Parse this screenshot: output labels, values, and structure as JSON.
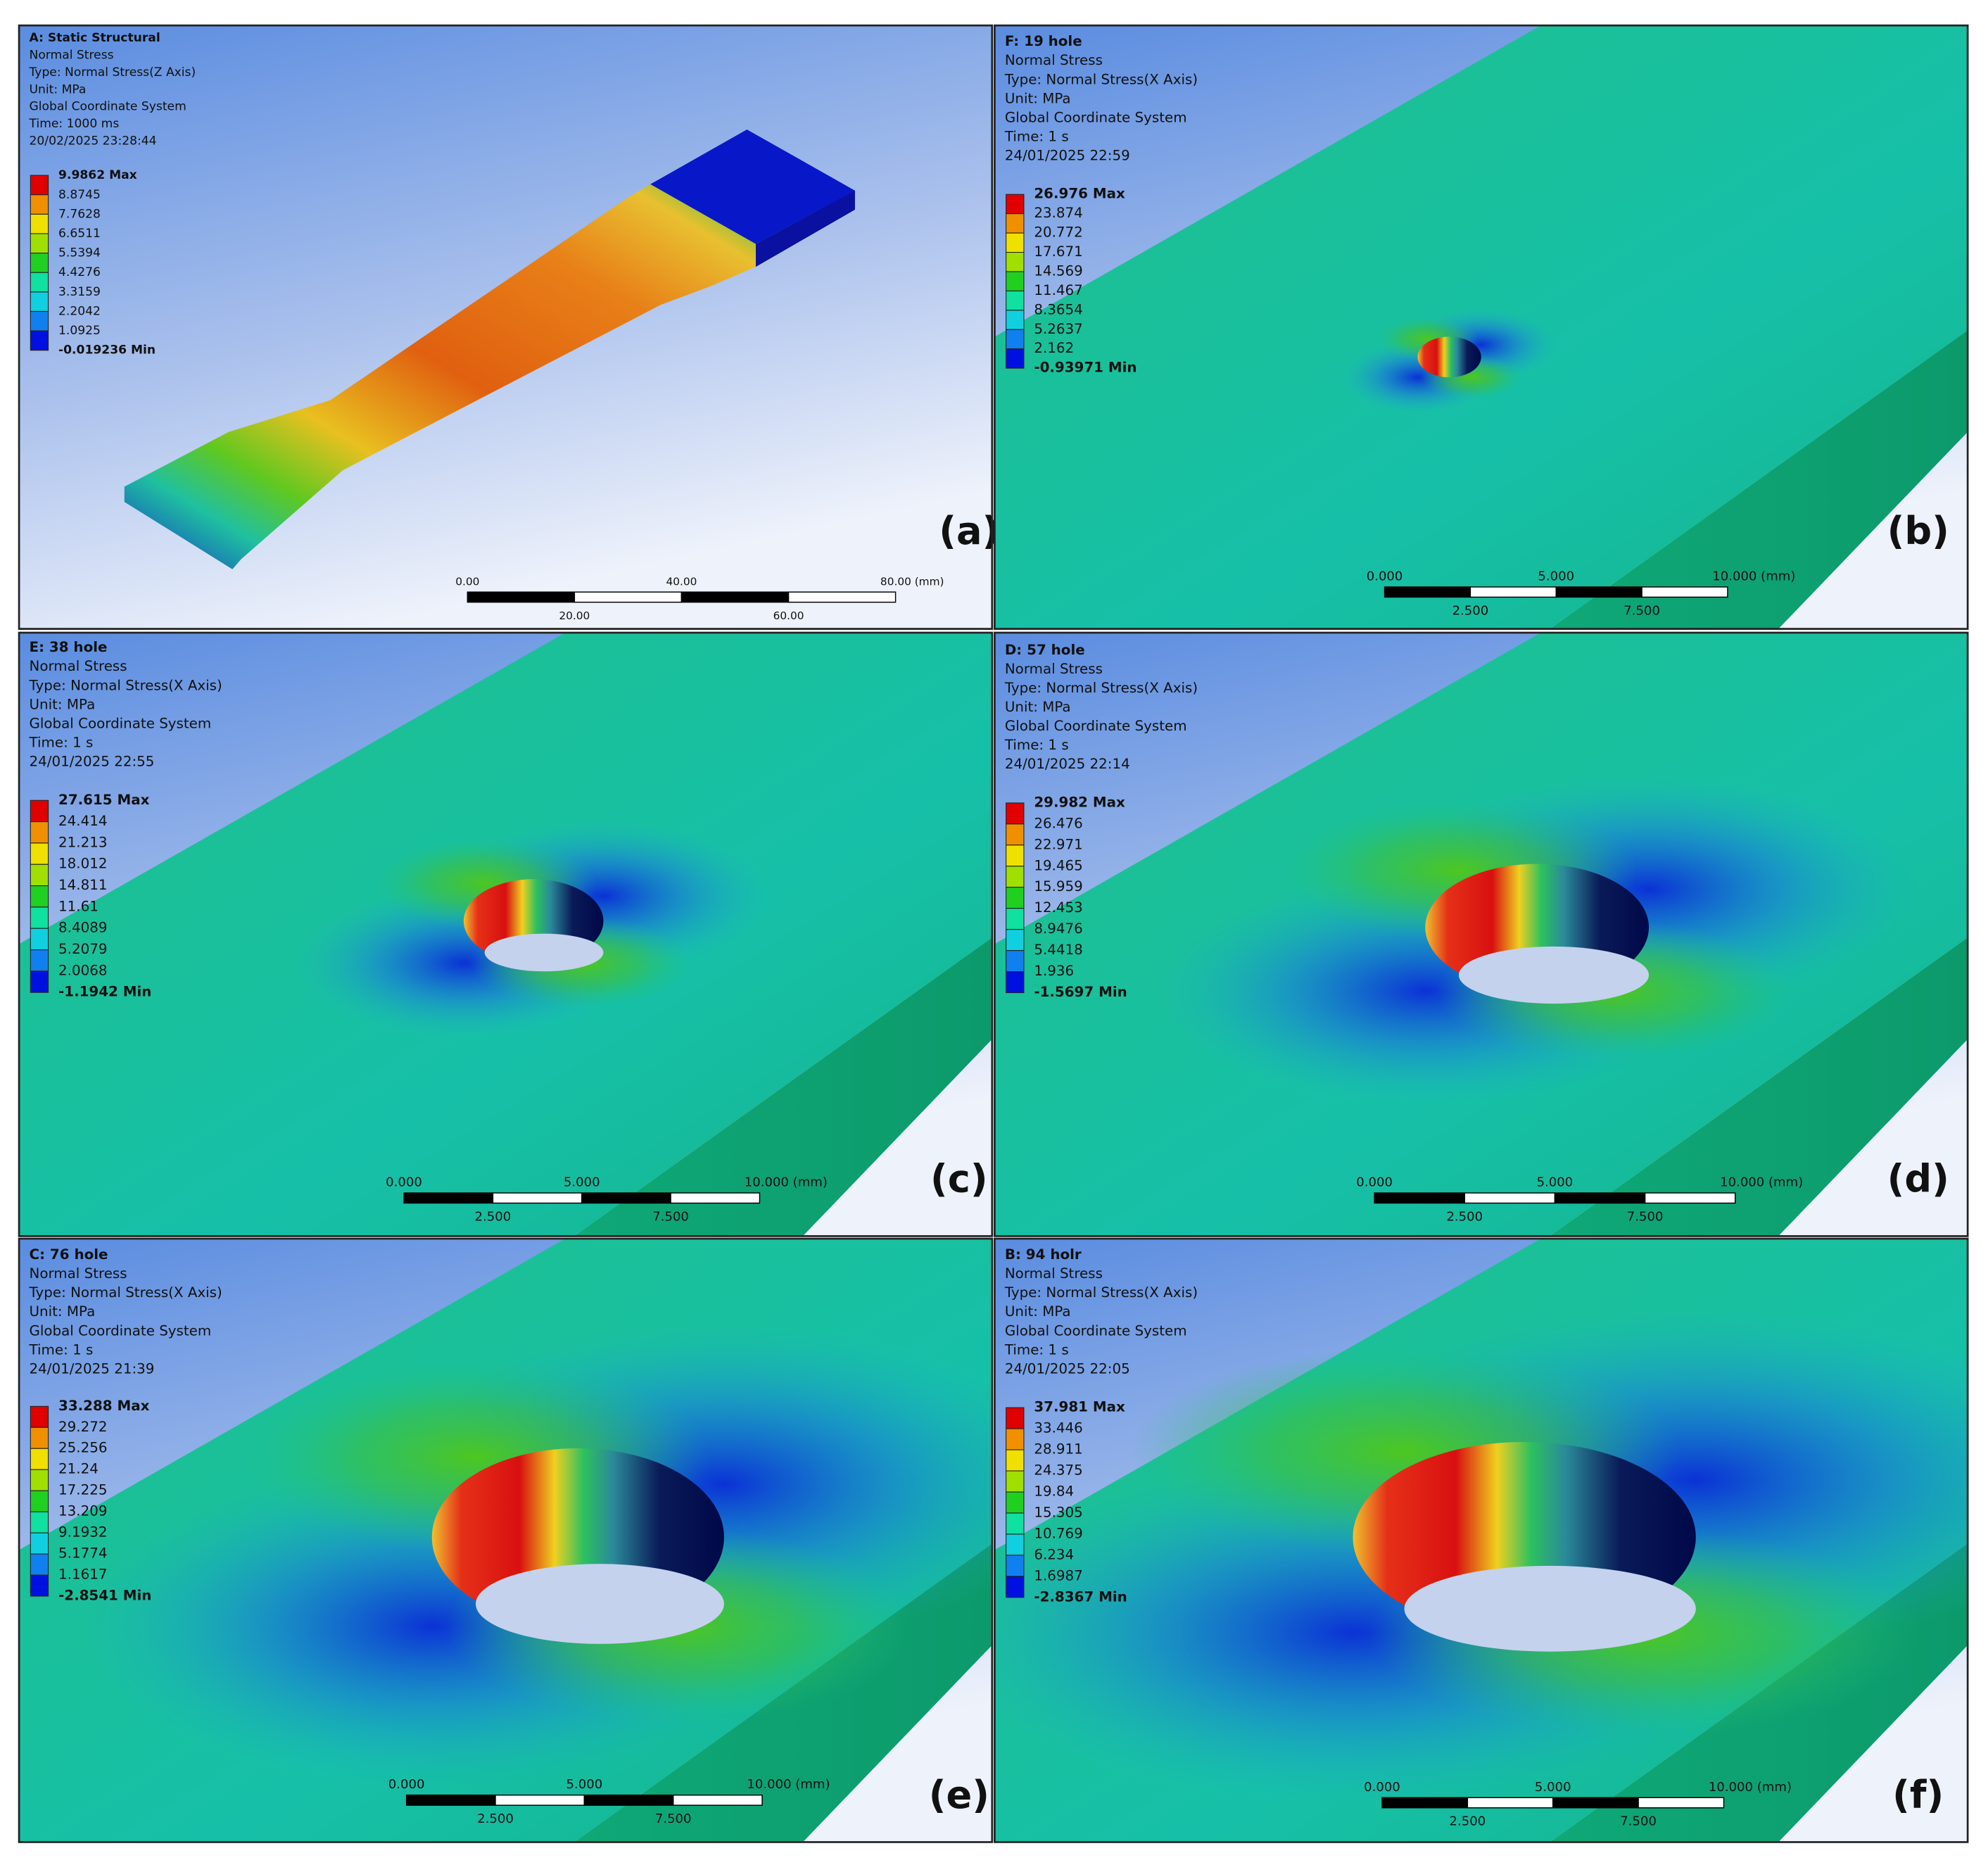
{
  "panels": [
    {
      "header": [
        "A: Static Structural",
        "Normal Stress",
        "Type: Normal Stress(Z Axis)",
        "Unit: MPa",
        "Global Coordinate System",
        "Time: 1000 ms",
        "20/02/2025 23:28:44"
      ],
      "legend": [
        "9.9862 Max",
        "8.8745",
        "7.7628",
        "6.6511",
        "5.5394",
        "4.4276",
        "3.3159",
        "2.2042",
        "1.0925",
        "-0.019236 Min"
      ],
      "scale_top": [
        "0.00",
        "40.00",
        "80.00 (mm)"
      ],
      "scale_bottom": [
        "20.00",
        "60.00"
      ],
      "label": "(a)"
    },
    {
      "header": [
        "F: 19 hole",
        "Normal Stress",
        "Type: Normal Stress(X Axis)",
        "Unit: MPa",
        "Global Coordinate System",
        "Time: 1 s",
        "24/01/2025 22:59"
      ],
      "legend": [
        "26.976 Max",
        "23.874",
        "20.772",
        "17.671",
        "14.569",
        "11.467",
        "8.3654",
        "5.2637",
        "2.162",
        "-0.93971 Min"
      ],
      "scale_top": [
        "0.000",
        "5.000",
        "10.000 (mm)"
      ],
      "scale_bottom": [
        "2.500",
        "7.500"
      ],
      "label": "(b)"
    },
    {
      "header": [
        "E: 38 hole",
        "Normal Stress",
        "Type: Normal Stress(X Axis)",
        "Unit: MPa",
        "Global Coordinate System",
        "Time: 1 s",
        "24/01/2025 22:55"
      ],
      "legend": [
        "27.615 Max",
        "24.414",
        "21.213",
        "18.012",
        "14.811",
        "11.61",
        "8.4089",
        "5.2079",
        "2.0068",
        "-1.1942 Min"
      ],
      "scale_top": [
        "0.000",
        "5.000",
        "10.000 (mm)"
      ],
      "scale_bottom": [
        "2.500",
        "7.500"
      ],
      "label": "(c)"
    },
    {
      "header": [
        "D: 57 hole",
        "Normal Stress",
        "Type: Normal Stress(X Axis)",
        "Unit: MPa",
        "Global Coordinate System",
        "Time: 1 s",
        "24/01/2025 22:14"
      ],
      "legend": [
        "29.982 Max",
        "26.476",
        "22.971",
        "19.465",
        "15.959",
        "12.453",
        "8.9476",
        "5.4418",
        "1.936",
        "-1.5697 Min"
      ],
      "scale_top": [
        "0.000",
        "5.000",
        "10.000 (mm)"
      ],
      "scale_bottom": [
        "2.500",
        "7.500"
      ],
      "label": "(d)"
    },
    {
      "header": [
        "C: 76 hole",
        "Normal Stress",
        "Type: Normal Stress(X Axis)",
        "Unit: MPa",
        "Global Coordinate System",
        "Time: 1 s",
        "24/01/2025 21:39"
      ],
      "legend": [
        "33.288 Max",
        "29.272",
        "25.256",
        "21.24",
        "17.225",
        "13.209",
        "9.1932",
        "5.1774",
        "1.1617",
        "-2.8541 Min"
      ],
      "scale_top": [
        "0.000",
        "5.000",
        "10.000 (mm)"
      ],
      "scale_bottom": [
        "2.500",
        "7.500"
      ],
      "label": "(e)"
    },
    {
      "header": [
        "B: 94 holr",
        "Normal Stress",
        "Type: Normal Stress(X Axis)",
        "Unit: MPa",
        "Global Coordinate System",
        "Time: 1 s",
        "24/01/2025 22:05"
      ],
      "legend": [
        "37.981 Max",
        "33.446",
        "28.911",
        "24.375",
        "19.84",
        "15.305",
        "10.769",
        "6.234",
        "1.6987",
        "-2.8367 Min"
      ],
      "scale_top": [
        "0.000",
        "5.000",
        "10.000 (mm)"
      ],
      "scale_bottom": [
        "2.500",
        "7.500"
      ],
      "label": "(f)"
    }
  ]
}
